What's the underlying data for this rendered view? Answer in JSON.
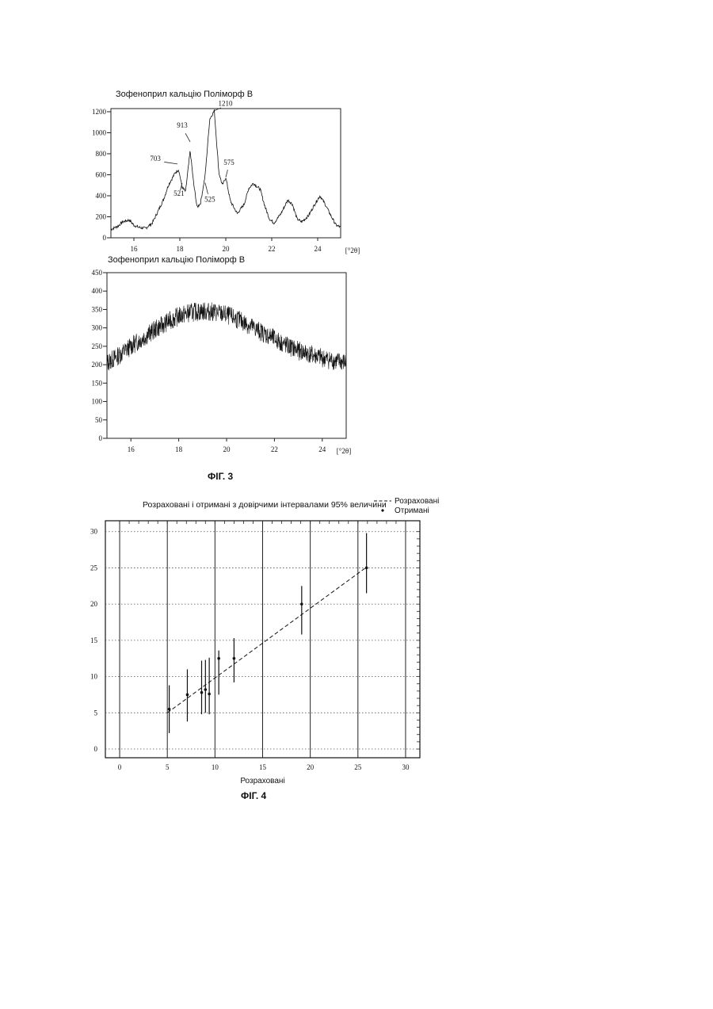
{
  "chart_data": [
    {
      "type": "line",
      "title": "Зофеноприл кальцію     Поліморф В",
      "xlabel": "[°2θ]",
      "x_ticks": [
        "16",
        "18",
        "20",
        "22",
        "24"
      ],
      "y_ticks": [
        "0",
        "200",
        "400",
        "600",
        "800",
        "1000",
        "1200"
      ],
      "xlim": [
        15.0,
        25.0
      ],
      "ylim": [
        0,
        1230
      ],
      "series": [
        {
          "x": [
            15.0,
            15.3,
            15.5,
            15.8,
            16.0,
            16.2,
            16.5,
            16.8,
            17.0,
            17.3,
            17.5,
            17.8,
            17.95,
            18.1,
            18.25,
            18.45,
            18.6,
            18.75,
            18.9,
            19.1,
            19.3,
            19.5,
            19.7,
            19.85,
            20.0,
            20.2,
            20.5,
            20.8,
            21.0,
            21.2,
            21.5,
            21.7,
            21.9,
            22.1,
            22.4,
            22.7,
            22.9,
            23.1,
            23.3,
            23.6,
            23.9,
            24.1,
            24.3,
            24.6,
            24.8,
            25.0
          ],
          "y": [
            80,
            110,
            150,
            170,
            120,
            100,
            90,
            140,
            230,
            370,
            500,
            620,
            650,
            480,
            440,
            830,
            520,
            290,
            330,
            590,
            1130,
            1210,
            620,
            500,
            575,
            350,
            230,
            320,
            470,
            520,
            460,
            300,
            180,
            140,
            230,
            360,
            320,
            180,
            150,
            210,
            330,
            400,
            330,
            200,
            120,
            100
          ]
        }
      ],
      "annotations": [
        {
          "label": "913",
          "x": 18.45,
          "y": 913
        },
        {
          "label": "1210",
          "x": 19.5,
          "y": 1210
        },
        {
          "label": "703",
          "x": 17.9,
          "y": 703
        },
        {
          "label": "575",
          "x": 20.0,
          "y": 575
        },
        {
          "label": "521",
          "x": 18.1,
          "y": 521
        },
        {
          "label": "525",
          "x": 19.1,
          "y": 525
        }
      ]
    },
    {
      "type": "line",
      "title": "Зофеноприл кальцію     Поліморф В",
      "xlabel": "[°2θ]",
      "x_ticks": [
        "16",
        "18",
        "20",
        "22",
        "24"
      ],
      "y_ticks": [
        "0",
        "50",
        "100",
        "150",
        "200",
        "250",
        "300",
        "350",
        "400",
        "450"
      ],
      "xlim": [
        15.0,
        25.0
      ],
      "ylim": [
        0,
        450
      ],
      "series": [
        {
          "x": [
            15.0,
            15.5,
            16.0,
            16.5,
            17.0,
            17.5,
            18.0,
            18.5,
            19.0,
            19.5,
            20.0,
            20.5,
            21.0,
            21.5,
            22.0,
            22.5,
            23.0,
            23.5,
            24.0,
            24.5,
            25.0
          ],
          "y": [
            205,
            225,
            250,
            272,
            295,
            315,
            332,
            342,
            345,
            343,
            335,
            322,
            305,
            287,
            270,
            252,
            238,
            228,
            218,
            210,
            205
          ]
        }
      ]
    },
    {
      "type": "scatter",
      "title": "Розраховані і отримані з довірчими інтервалами 95% величини",
      "xlabel": "Розраховані",
      "ylabel": "",
      "x_ticks": [
        "0",
        "5",
        "10",
        "15",
        "20",
        "25",
        "30"
      ],
      "y_ticks": [
        "0",
        "5",
        "10",
        "15",
        "20",
        "25",
        "30"
      ],
      "xlim": [
        -1.5,
        31.5
      ],
      "ylim": [
        -1.2,
        31.5
      ],
      "legend": {
        "position": "top-right",
        "calculated": "Розраховані",
        "observed": "Отримані"
      },
      "calculated_line": {
        "x": [
          5,
          25.8
        ],
        "y": [
          5,
          25
        ]
      },
      "points": [
        {
          "x": 5.2,
          "y": 5.5,
          "low": 2.2,
          "high": 8.8
        },
        {
          "x": 7.1,
          "y": 7.5,
          "low": 3.8,
          "high": 11.0
        },
        {
          "x": 8.6,
          "y": 7.8,
          "low": 4.8,
          "high": 12.2
        },
        {
          "x": 9.0,
          "y": 8.2,
          "low": 5.0,
          "high": 12.3
        },
        {
          "x": 9.4,
          "y": 7.6,
          "low": 4.8,
          "high": 12.6
        },
        {
          "x": 10.4,
          "y": 12.5,
          "low": 7.5,
          "high": 13.6
        },
        {
          "x": 12.0,
          "y": 12.5,
          "low": 9.2,
          "high": 15.3
        },
        {
          "x": 19.1,
          "y": 20.0,
          "low": 15.8,
          "high": 22.5
        },
        {
          "x": 25.9,
          "y": 25.0,
          "low": 21.5,
          "high": 29.8
        }
      ]
    }
  ],
  "captions": {
    "fig3": "ФІГ. 3",
    "fig4": "ФІГ. 4"
  }
}
